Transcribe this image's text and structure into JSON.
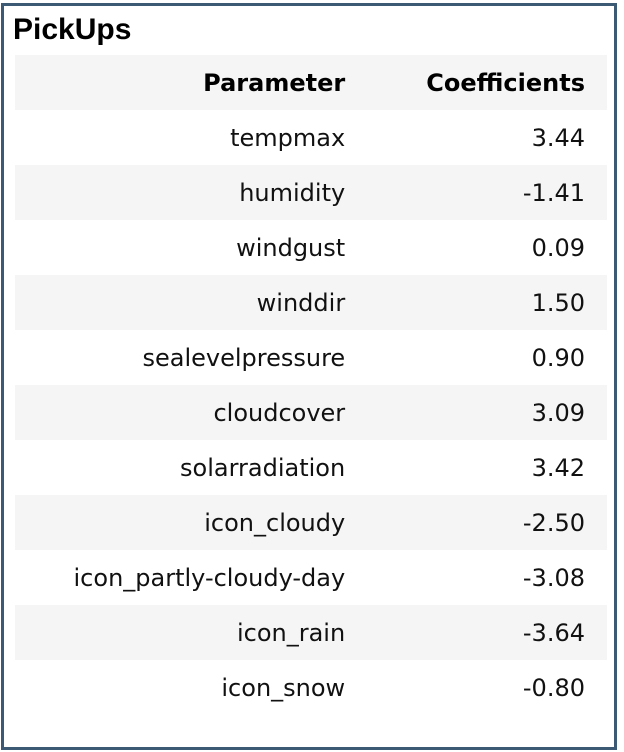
{
  "title": "PickUps",
  "columns": [
    "Parameter",
    "Coefficients"
  ],
  "rows": [
    {
      "parameter": "tempmax",
      "coefficient": "3.44"
    },
    {
      "parameter": "humidity",
      "coefficient": "-1.41"
    },
    {
      "parameter": "windgust",
      "coefficient": "0.09"
    },
    {
      "parameter": "winddir",
      "coefficient": "1.50"
    },
    {
      "parameter": "sealevelpressure",
      "coefficient": "0.90"
    },
    {
      "parameter": "cloudcover",
      "coefficient": "3.09"
    },
    {
      "parameter": "solarradiation",
      "coefficient": "3.42"
    },
    {
      "parameter": "icon_cloudy",
      "coefficient": "-2.50"
    },
    {
      "parameter": "icon_partly-cloudy-day",
      "coefficient": "-3.08"
    },
    {
      "parameter": "icon_rain",
      "coefficient": "-3.64"
    },
    {
      "parameter": "icon_snow",
      "coefficient": "-0.80"
    }
  ],
  "colors": {
    "border": "#3d5a74",
    "stripe": "#f5f5f5"
  }
}
